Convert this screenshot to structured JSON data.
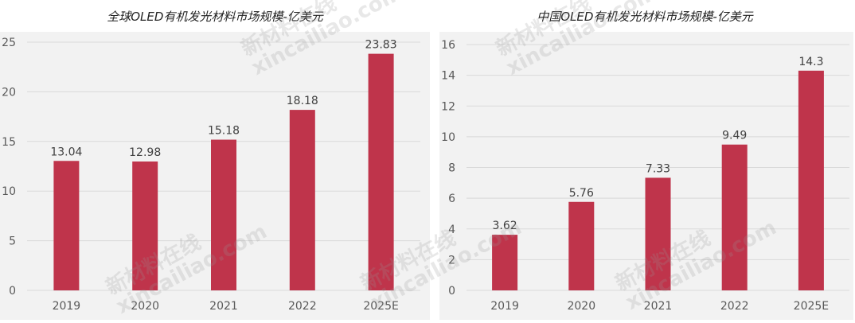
{
  "chart_data": [
    {
      "type": "bar",
      "title": "全球OLED有机发光材料市场规模-亿美元",
      "categories": [
        "2019",
        "2020",
        "2021",
        "2022",
        "2025E"
      ],
      "values": [
        13.04,
        12.98,
        15.18,
        18.18,
        23.83
      ],
      "data_labels": [
        "13.04",
        "12.98",
        "15.18",
        "18.18",
        "23.83"
      ],
      "ylim": [
        0,
        25
      ],
      "yticks": [
        "0",
        "5",
        "10",
        "15",
        "20",
        "25"
      ],
      "grid": true,
      "bar_color": "#bf344b"
    },
    {
      "type": "bar",
      "title": "中国OLED有机发光材料市场规模-亿美元",
      "categories": [
        "2019",
        "2020",
        "2021",
        "2022",
        "2025E"
      ],
      "values": [
        3.62,
        5.76,
        7.33,
        9.49,
        14.3
      ],
      "data_labels": [
        "3.62",
        "5.76",
        "7.33",
        "9.49",
        "14.3"
      ],
      "ylim": [
        0,
        16
      ],
      "yticks": [
        "0",
        "2",
        "4",
        "6",
        "8",
        "10",
        "12",
        "14",
        "16"
      ],
      "grid": true,
      "bar_color": "#bf344b"
    }
  ],
  "watermark": {
    "cn": "新材料在线",
    "en": "xincailiao.com"
  },
  "colors": {
    "plot_background": "#f2f2f2",
    "gridline": "#d9d9d9",
    "axis_text": "#595959",
    "label_text": "#404040"
  }
}
